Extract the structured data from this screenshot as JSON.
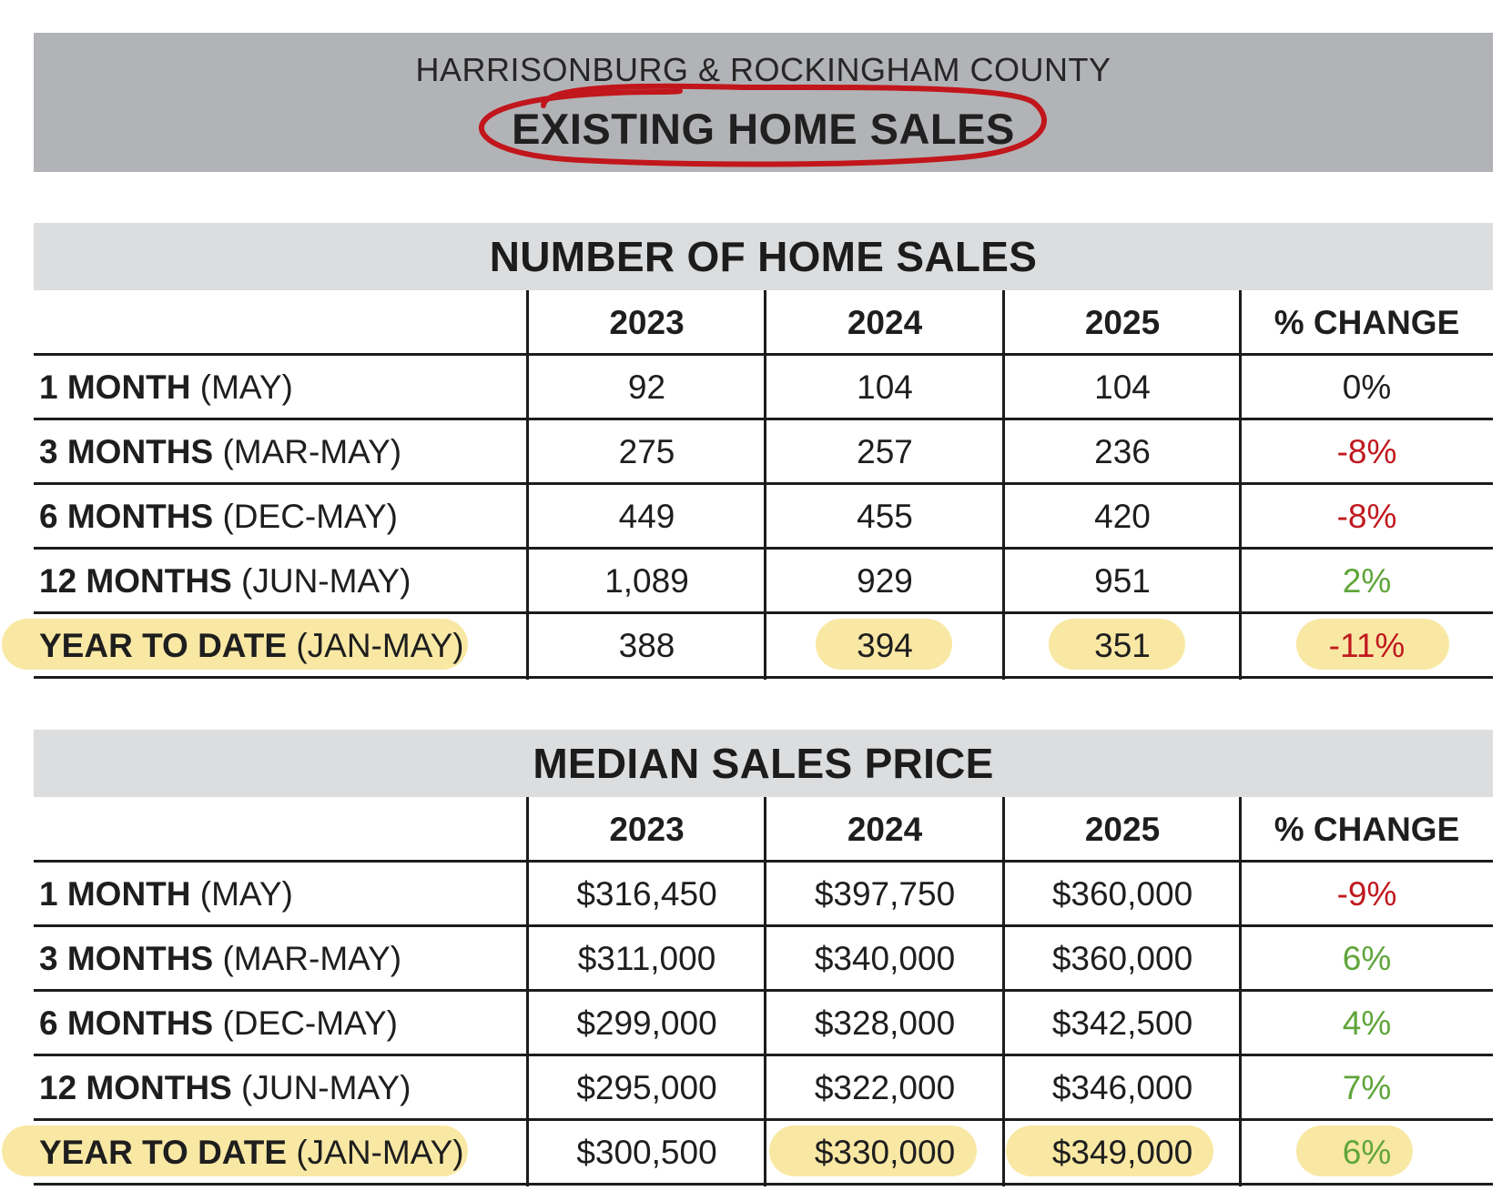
{
  "header": {
    "region": "HARRISONBURG & ROCKINGHAM COUNTY",
    "title": "EXISTING HOME SALES",
    "circle_color": "#c1161c"
  },
  "colors": {
    "header_bg": "#b2b3b6",
    "section_bg": "#dcdddf",
    "negative": "#c0191f",
    "positive": "#5fa53a",
    "highlight": "#f8e59a"
  },
  "sections": [
    {
      "title": "NUMBER OF HOME SALES",
      "columns": [
        "2023",
        "2024",
        "2025",
        "% CHANGE"
      ],
      "rows": [
        {
          "label": "1 MONTH",
          "range": "(MAY)",
          "values": [
            "92",
            "104",
            "104"
          ],
          "change": "0%",
          "trend": "zero"
        },
        {
          "label": "3 MONTHS",
          "range": "(MAR-MAY)",
          "values": [
            "275",
            "257",
            "236"
          ],
          "change": "-8%",
          "trend": "neg"
        },
        {
          "label": "6 MONTHS",
          "range": "(DEC-MAY)",
          "values": [
            "449",
            "455",
            "420"
          ],
          "change": "-8%",
          "trend": "neg"
        },
        {
          "label": "12 MONTHS",
          "range": "(JUN-MAY)",
          "values": [
            "1,089",
            "929",
            "951"
          ],
          "change": "2%",
          "trend": "pos"
        },
        {
          "label": "YEAR TO DATE",
          "range": "(JAN-MAY)",
          "values": [
            "388",
            "394",
            "351"
          ],
          "change": "-11%",
          "trend": "neg"
        }
      ]
    },
    {
      "title": "MEDIAN SALES PRICE",
      "columns": [
        "2023",
        "2024",
        "2025",
        "% CHANGE"
      ],
      "rows": [
        {
          "label": "1 MONTH",
          "range": "(MAY)",
          "values": [
            "$316,450",
            "$397,750",
            "$360,000"
          ],
          "change": "-9%",
          "trend": "neg"
        },
        {
          "label": "3 MONTHS",
          "range": "(MAR-MAY)",
          "values": [
            "$311,000",
            "$340,000",
            "$360,000"
          ],
          "change": "6%",
          "trend": "pos"
        },
        {
          "label": "6 MONTHS",
          "range": "(DEC-MAY)",
          "values": [
            "$299,000",
            "$328,000",
            "$342,500"
          ],
          "change": "4%",
          "trend": "pos"
        },
        {
          "label": "12 MONTHS",
          "range": "(JUN-MAY)",
          "values": [
            "$295,000",
            "$322,000",
            "$346,000"
          ],
          "change": "7%",
          "trend": "pos"
        },
        {
          "label": "YEAR TO DATE",
          "range": "(JAN-MAY)",
          "values": [
            "$300,500",
            "$330,000",
            "$349,000"
          ],
          "change": "6%",
          "trend": "pos"
        }
      ]
    }
  ]
}
